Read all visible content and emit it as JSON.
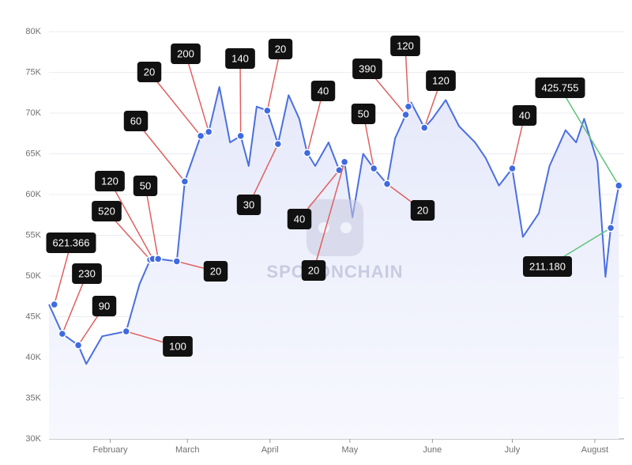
{
  "chart_data": {
    "type": "line",
    "watermark": "SPOTONCHAIN",
    "x": [
      9,
      14,
      20,
      23,
      29,
      38,
      43,
      47,
      50,
      57,
      60,
      66,
      69,
      73,
      77,
      81,
      84,
      87,
      91,
      95,
      99,
      103,
      106,
      109,
      114,
      118,
      120,
      123,
      127,
      131,
      136,
      139,
      143,
      145,
      150,
      153,
      158,
      163,
      169,
      173,
      178,
      183,
      187,
      193,
      197,
      203,
      207,
      210,
      215,
      218,
      220,
      223
    ],
    "series": [
      {
        "color": "#4a6fe0",
        "values": [
          46500,
          42900,
          41500,
          39200,
          42600,
          43200,
          49000,
          52000,
          52100,
          51800,
          61600,
          67200,
          67700,
          73200,
          66400,
          67200,
          63500,
          70800,
          70300,
          66200,
          72200,
          69300,
          65100,
          63500,
          66400,
          63000,
          64000,
          57200,
          65000,
          63200,
          61300,
          66900,
          69800,
          71300,
          68200,
          69300,
          71600,
          68400,
          66400,
          64500,
          61100,
          63200,
          54800,
          57700,
          63500,
          67900,
          66400,
          69300,
          64000,
          49900,
          55900,
          61100
        ]
      }
    ],
    "xlim": [
      9,
      225
    ],
    "xticks": [
      {
        "value": 32,
        "label": "February"
      },
      {
        "value": 61,
        "label": "March"
      },
      {
        "value": 92,
        "label": "April"
      },
      {
        "value": 122,
        "label": "May"
      },
      {
        "value": 153,
        "label": "June"
      },
      {
        "value": 183,
        "label": "July"
      },
      {
        "value": 214,
        "label": "August"
      }
    ],
    "ylim": [
      30000,
      80000
    ],
    "yticks": [
      {
        "value": 30000,
        "label": "30K"
      },
      {
        "value": 35000,
        "label": "35K"
      },
      {
        "value": 40000,
        "label": "40K"
      },
      {
        "value": 45000,
        "label": "45K"
      },
      {
        "value": 50000,
        "label": "50K"
      },
      {
        "value": 55000,
        "label": "55K"
      },
      {
        "value": 60000,
        "label": "60K"
      },
      {
        "value": 65000,
        "label": "65K"
      },
      {
        "value": 70000,
        "label": "70K"
      },
      {
        "value": 75000,
        "label": "75K"
      },
      {
        "value": 80000,
        "label": "80K"
      }
    ],
    "grid": true,
    "annotations": [
      {
        "label": "621.366",
        "x": 11,
        "y": 46500,
        "color": "#e06060"
      },
      {
        "label": "230",
        "x": 14,
        "y": 42900,
        "color": "#e06060"
      },
      {
        "label": "90",
        "x": 20,
        "y": 41500,
        "color": "#e06060"
      },
      {
        "label": "100",
        "x": 38,
        "y": 43200,
        "color": "#e06060"
      },
      {
        "label": "520",
        "x": 47,
        "y": 52000,
        "color": "#e06060"
      },
      {
        "label": "120",
        "x": 48,
        "y": 52100,
        "color": "#e06060"
      },
      {
        "label": "50",
        "x": 50,
        "y": 52100,
        "color": "#e06060"
      },
      {
        "label": "20",
        "x": 57,
        "y": 51800,
        "color": "#e06060"
      },
      {
        "label": "60",
        "x": 60,
        "y": 61600,
        "color": "#e06060"
      },
      {
        "label": "20",
        "x": 66,
        "y": 67200,
        "color": "#e06060"
      },
      {
        "label": "200",
        "x": 69,
        "y": 67700,
        "color": "#e06060"
      },
      {
        "label": "140",
        "x": 81,
        "y": 67200,
        "color": "#e06060"
      },
      {
        "label": "30",
        "x": 95,
        "y": 66200,
        "color": "#e06060"
      },
      {
        "label": "20",
        "x": 91,
        "y": 70300,
        "color": "#e06060"
      },
      {
        "label": "40",
        "x": 106,
        "y": 65100,
        "color": "#e06060"
      },
      {
        "label": "40",
        "x": 118,
        "y": 63000,
        "color": "#e06060"
      },
      {
        "label": "20",
        "x": 120,
        "y": 64000,
        "color": "#e06060"
      },
      {
        "label": "50",
        "x": 131,
        "y": 63200,
        "color": "#e06060"
      },
      {
        "label": "390",
        "x": 143,
        "y": 69800,
        "color": "#e06060"
      },
      {
        "label": "120",
        "x": 144,
        "y": 70800,
        "color": "#e06060"
      },
      {
        "label": "20",
        "x": 136,
        "y": 61300,
        "color": "#e06060"
      },
      {
        "label": "120",
        "x": 150,
        "y": 68200,
        "color": "#e06060"
      },
      {
        "label": "40",
        "x": 183,
        "y": 63200,
        "color": "#e06060"
      },
      {
        "label": "425.755",
        "x": 223,
        "y": 61100,
        "color": "#5cc47a"
      },
      {
        "label": "211.180",
        "x": 220,
        "y": 55900,
        "color": "#5cc47a"
      }
    ]
  }
}
